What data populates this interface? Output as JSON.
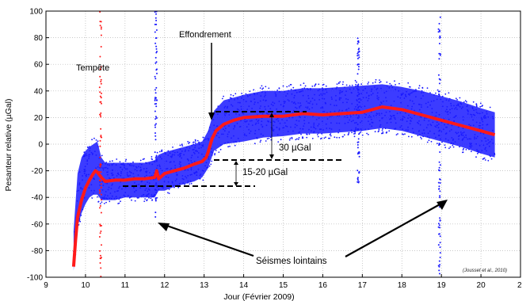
{
  "chart_data": {
    "type": "scatter",
    "xlabel": "Jour (Février 2009)",
    "ylabel": "Pesanteur relative (µGal)",
    "xlim": [
      9,
      21
    ],
    "ylim": [
      -100,
      100
    ],
    "x_ticks": [
      "9",
      "10",
      "11",
      "12",
      "13",
      "14",
      "15",
      "16",
      "17",
      "18",
      "19",
      "20",
      "2"
    ],
    "y_ticks": [
      "100",
      "80",
      "60",
      "40",
      "20",
      "0",
      "-20",
      "-40",
      "-60",
      "-80",
      "-100"
    ],
    "grid": true,
    "colors": {
      "raw": "#1a1aff",
      "smoothed": "#ff1a1a"
    },
    "series": [
      {
        "role": "raw",
        "band": [
          [
            9.7,
            -95,
            -65
          ],
          [
            9.8,
            -62,
            -22
          ],
          [
            9.9,
            -52,
            -10
          ],
          [
            10.0,
            -45,
            -5
          ],
          [
            10.1,
            -40,
            -2
          ],
          [
            10.2,
            -38,
            0
          ],
          [
            10.3,
            -38,
            2
          ],
          [
            10.4,
            -42,
            -10
          ],
          [
            10.5,
            -42,
            -14
          ],
          [
            10.75,
            -42,
            -14
          ],
          [
            11.0,
            -40,
            -14
          ],
          [
            11.25,
            -40,
            -14
          ],
          [
            11.5,
            -40,
            -14
          ],
          [
            11.75,
            -40,
            -12
          ],
          [
            11.85,
            -35,
            -8
          ],
          [
            12.0,
            -35,
            -6
          ],
          [
            12.25,
            -32,
            -4
          ],
          [
            12.5,
            -30,
            -2
          ],
          [
            12.75,
            -28,
            0
          ],
          [
            12.95,
            -25,
            2
          ],
          [
            13.1,
            -18,
            10
          ],
          [
            13.25,
            -5,
            25
          ],
          [
            13.5,
            0,
            33
          ],
          [
            14.0,
            2,
            37
          ],
          [
            14.5,
            5,
            40
          ],
          [
            15.0,
            6,
            40
          ],
          [
            15.5,
            8,
            42
          ],
          [
            16.0,
            8,
            42
          ],
          [
            16.5,
            9,
            43
          ],
          [
            17.0,
            10,
            44
          ],
          [
            17.5,
            12,
            45
          ],
          [
            18.0,
            10,
            43
          ],
          [
            18.5,
            6,
            40
          ],
          [
            19.0,
            2,
            36
          ],
          [
            19.5,
            -2,
            32
          ],
          [
            20.0,
            -7,
            27
          ],
          [
            20.35,
            -10,
            24
          ]
        ]
      },
      {
        "role": "smoothed",
        "x": [
          9.7,
          9.75,
          9.8,
          9.9,
          10.0,
          10.1,
          10.2,
          10.25,
          10.3,
          10.4,
          10.5,
          10.75,
          11.0,
          11.25,
          11.5,
          11.75,
          11.8,
          11.85,
          12.0,
          12.25,
          12.5,
          12.75,
          12.95,
          13.05,
          13.1,
          13.2,
          13.3,
          13.5,
          13.75,
          14.0,
          14.5,
          15.0,
          15.5,
          16.0,
          16.5,
          17.0,
          17.5,
          18.0,
          18.5,
          19.0,
          19.5,
          20.0,
          20.35
        ],
        "y": [
          -92,
          -72,
          -55,
          -42,
          -33,
          -27,
          -22,
          -20,
          -21,
          -25,
          -28,
          -27,
          -27,
          -26,
          -26,
          -25,
          -20,
          -26,
          -22,
          -20,
          -18,
          -15,
          -13,
          -10,
          -6,
          4,
          10,
          15,
          18,
          20,
          21,
          21,
          23,
          22,
          23,
          24,
          28,
          26,
          22,
          18,
          14,
          10,
          7
        ]
      }
    ],
    "spikes": [
      {
        "x": 10.38,
        "color": "#ff1a1a",
        "y_min": -100,
        "y_max": 100
      },
      {
        "x": 11.78,
        "color": "#1a1aff",
        "y_min": -55,
        "y_max": 100
      },
      {
        "x": 16.9,
        "color": "#1a1aff",
        "y_min": -35,
        "y_max": 80
      },
      {
        "x": 18.95,
        "color": "#1a1aff",
        "y_min": -100,
        "y_max": 100
      }
    ],
    "annotations": {
      "storm": "Tempête",
      "collapse": "Effondrement",
      "step_30": "30 µGal",
      "step_15_20": "15-20 µGal",
      "quakes": "Séismes lointains",
      "credit": "(Jousset et al., 2010)"
    }
  }
}
